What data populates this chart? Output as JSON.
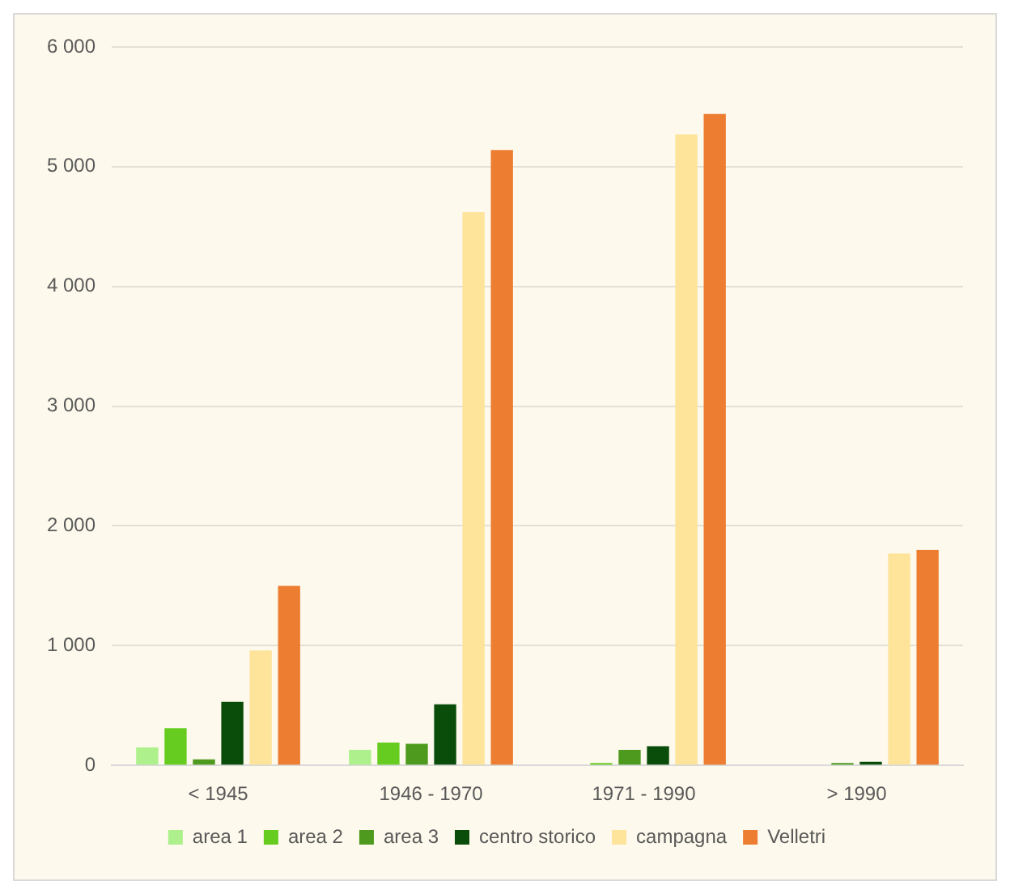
{
  "chart_data": {
    "type": "bar",
    "categories": [
      "< 1945",
      "1946 - 1970",
      "1971 - 1990",
      "> 1990"
    ],
    "series": [
      {
        "name": "area 1",
        "color": "#adf08c",
        "values": [
          150,
          130,
          0,
          0
        ]
      },
      {
        "name": "area 2",
        "color": "#66cc1f",
        "values": [
          310,
          190,
          20,
          0
        ]
      },
      {
        "name": "area 3",
        "color": "#4e9a1e",
        "values": [
          50,
          180,
          130,
          20
        ]
      },
      {
        "name": "centro storico",
        "color": "#0a4d0a",
        "values": [
          530,
          510,
          160,
          30
        ]
      },
      {
        "name": "campagna",
        "color": "#fde49a",
        "values": [
          960,
          4620,
          5270,
          1770
        ]
      },
      {
        "name": "Velletri",
        "color": "#ed7d31",
        "values": [
          1500,
          5140,
          5440,
          1800
        ]
      }
    ],
    "ylim": [
      0,
      6000
    ],
    "yticks": [
      {
        "value": 0,
        "label": "0"
      },
      {
        "value": 1000,
        "label": "1 000"
      },
      {
        "value": 2000,
        "label": "2 000"
      },
      {
        "value": 3000,
        "label": "3 000"
      },
      {
        "value": 4000,
        "label": "4 000"
      },
      {
        "value": 5000,
        "label": "5 000"
      },
      {
        "value": 6000,
        "label": "6 000"
      }
    ],
    "grid": "y",
    "legend": "bottom"
  }
}
